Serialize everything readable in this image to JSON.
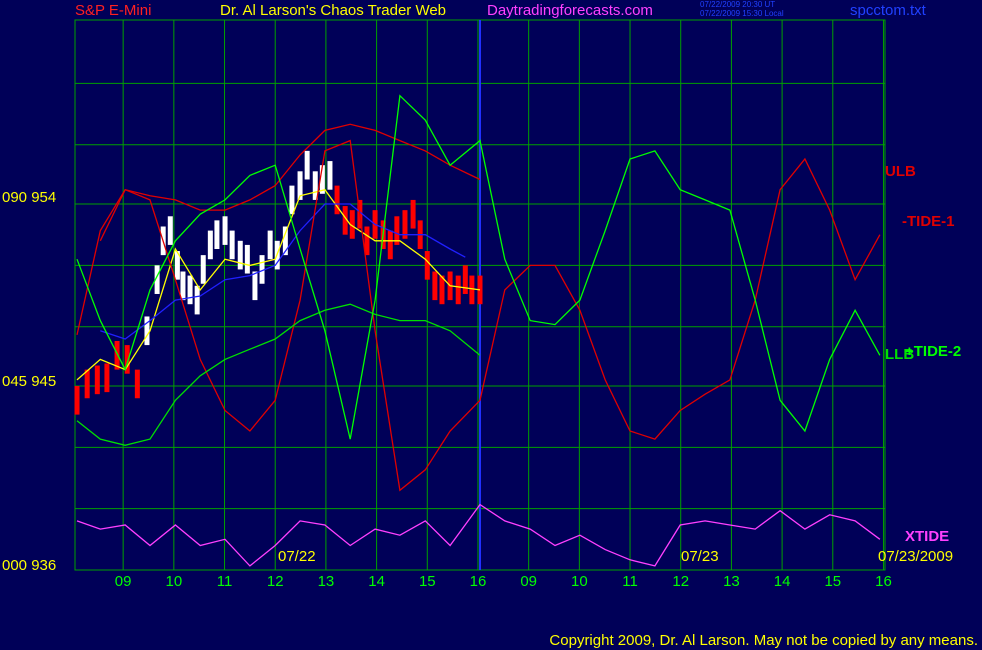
{
  "chart_data": {
    "type": "line",
    "symbol": "S&P E-Mini",
    "title": "Dr. Al Larson's Chaos Trader Web",
    "site": "Daytradingforecasts.com",
    "timestamps": [
      "07/22/2009 20:30 UT",
      "07/22/2009 15:30 Local"
    ],
    "file": "spcctom.txt",
    "date_labels": [
      "07/22",
      "07/23",
      "07/23/2009"
    ],
    "copyright": "Copyright 2009, Dr. Al Larson. May not be copied by any means.",
    "xlim": [
      8.05,
      24.03
    ],
    "ylim": [
      935.8,
      962.7
    ],
    "xticks": [
      {
        "value": 9,
        "label": "09"
      },
      10,
      11,
      12,
      13,
      14,
      15,
      16,
      {
        "value": 17,
        "label": "09"
      },
      {
        "value": 18,
        "label": "10"
      },
      {
        "value": 19,
        "label": "11"
      },
      {
        "value": 20,
        "label": "12"
      },
      {
        "value": 21,
        "label": "13"
      },
      {
        "value": 22,
        "label": "14"
      },
      {
        "value": 23,
        "label": "15"
      },
      {
        "value": 24,
        "label": "16"
      }
    ],
    "yticks": [
      {
        "value": 936,
        "label": "000 936"
      },
      {
        "value": 945,
        "label": "045 945"
      },
      {
        "value": 954,
        "label": "090 954"
      }
    ],
    "ygrid": [
      938.8,
      941.8,
      944.8,
      947.7,
      950.7,
      953.7,
      956.6,
      959.6
    ],
    "grid": true,
    "bars": [
      {
        "color": "#ff0000",
        "x": [
          8.09,
          8.29,
          8.49,
          8.68,
          8.88,
          9.08,
          9.28
        ],
        "high": [
          944.8,
          945.6,
          945.8,
          945.9,
          947.0,
          946.8,
          945.6
        ],
        "low": [
          943.4,
          944.2,
          944.4,
          944.5,
          945.6,
          945.4,
          944.2
        ]
      },
      {
        "color": "#ffffff",
        "x": [
          9.47,
          9.67,
          9.79,
          9.93,
          10.07,
          10.18,
          10.32,
          10.46,
          10.58,
          10.72,
          10.85,
          11.01,
          11.15,
          11.31,
          11.45,
          11.6,
          11.74,
          11.9,
          12.04,
          12.2,
          12.33,
          12.49,
          12.63,
          12.79,
          12.93,
          13.08
        ],
        "high": [
          948.2,
          950.7,
          952.6,
          953.1,
          951.4,
          950.4,
          950.2,
          949.7,
          951.2,
          952.4,
          952.9,
          953.1,
          952.4,
          951.9,
          951.7,
          950.4,
          951.2,
          952.4,
          951.9,
          952.6,
          954.6,
          955.3,
          956.3,
          955.3,
          955.6,
          955.8
        ],
        "low": [
          946.8,
          949.3,
          951.2,
          951.7,
          950.0,
          949.0,
          948.8,
          948.3,
          949.8,
          951.0,
          951.5,
          951.7,
          951.0,
          950.5,
          950.3,
          949.0,
          949.8,
          951.0,
          950.5,
          951.2,
          953.2,
          953.9,
          954.9,
          953.9,
          954.2,
          954.4
        ]
      },
      {
        "color": "#ff0000",
        "x": [
          13.22,
          13.38,
          13.52,
          13.67,
          13.81,
          13.97,
          14.13,
          14.27,
          14.4,
          14.56,
          14.72,
          14.86,
          15.0,
          15.15,
          15.29,
          15.45,
          15.61,
          15.75,
          15.88,
          16.04
        ],
        "high": [
          954.6,
          953.6,
          953.4,
          953.9,
          952.6,
          953.4,
          952.9,
          952.4,
          953.1,
          953.4,
          953.9,
          952.9,
          951.4,
          950.4,
          950.2,
          950.4,
          950.2,
          950.7,
          950.2,
          950.2
        ],
        "low": [
          953.2,
          952.2,
          952.0,
          952.5,
          951.2,
          952.0,
          951.5,
          951.0,
          951.7,
          952.0,
          952.5,
          951.5,
          950.0,
          949.0,
          948.8,
          949.0,
          948.8,
          949.3,
          948.8,
          948.8
        ]
      }
    ],
    "series": [
      {
        "color": "#ffff00",
        "x": [
          8.09,
          8.55,
          9.04,
          9.53,
          10.03,
          10.52,
          11.01,
          11.5,
          12.0,
          12.49,
          12.98,
          13.48,
          13.97,
          14.46,
          14.96,
          15.45,
          16.04
        ],
        "values": [
          945.1,
          946.1,
          945.6,
          947.5,
          951.5,
          949.5,
          951.0,
          950.7,
          951.0,
          954.1,
          954.4,
          952.7,
          951.9,
          951.9,
          951.0,
          949.7,
          949.5
        ]
      },
      {
        "color": "#2020ff",
        "x": [
          8.55,
          9.04,
          9.53,
          10.03,
          10.52,
          11.01,
          11.5,
          12.0,
          12.49,
          12.98,
          13.48,
          13.97,
          14.46,
          14.96,
          15.45,
          15.75
        ],
        "values": [
          947.5,
          947.1,
          948.0,
          949.0,
          949.2,
          950.0,
          950.2,
          950.7,
          952.4,
          953.7,
          953.7,
          952.7,
          952.2,
          952.2,
          951.5,
          951.1
        ]
      },
      {
        "name": "ULB",
        "color": "#e00000",
        "x": [
          8.55,
          9.04,
          9.53,
          10.03,
          10.52,
          11.01,
          11.5,
          12.0,
          12.49,
          12.98,
          13.48,
          13.97,
          14.46,
          14.96,
          15.45,
          16.04
        ],
        "values": [
          951.9,
          954.4,
          954.1,
          953.9,
          953.4,
          953.4,
          953.9,
          954.6,
          956.1,
          957.3,
          957.6,
          957.3,
          956.8,
          956.3,
          955.6,
          954.9
        ]
      },
      {
        "name": "-TIDE-1",
        "color": "#e00000",
        "x": [
          8.09,
          8.55,
          9.04,
          9.53,
          10.03,
          10.52,
          11.01,
          11.5,
          12.0,
          12.49,
          12.98,
          13.48,
          13.97,
          14.46,
          14.96,
          15.45,
          16.04,
          16.53,
          17.03,
          17.52,
          18.01,
          18.51,
          19.0,
          19.49,
          19.99,
          20.48,
          20.97,
          21.47,
          21.96,
          22.45,
          22.94,
          23.44,
          23.93
        ],
        "values": [
          947.3,
          952.4,
          954.4,
          953.9,
          950.0,
          946.1,
          943.6,
          942.6,
          944.1,
          949.0,
          956.3,
          956.8,
          947.5,
          939.7,
          940.7,
          942.6,
          944.1,
          949.5,
          950.7,
          950.7,
          948.5,
          945.1,
          942.6,
          942.2,
          943.6,
          944.4,
          945.1,
          949.0,
          954.4,
          955.9,
          953.4,
          950.0,
          952.2
        ]
      },
      {
        "name": "LLB",
        "color": "#00e000",
        "x": [
          8.09,
          8.55,
          9.04,
          9.53,
          10.03,
          10.52,
          11.01,
          11.5,
          12.0,
          12.49,
          12.98,
          13.48,
          13.97,
          14.46,
          14.96,
          15.45,
          16.04
        ],
        "values": [
          943.1,
          942.2,
          941.9,
          942.2,
          944.1,
          945.3,
          946.1,
          946.6,
          947.1,
          948.0,
          948.5,
          948.8,
          948.3,
          948.0,
          948.0,
          947.5,
          946.3
        ]
      },
      {
        "name": "+TIDE-2",
        "color": "#00ff00",
        "x": [
          8.09,
          8.55,
          9.04,
          9.53,
          10.03,
          10.52,
          11.01,
          11.5,
          12.0,
          12.49,
          12.98,
          13.48,
          13.97,
          14.46,
          14.96,
          15.45,
          16.04,
          16.53,
          17.03,
          17.52,
          18.01,
          18.51,
          19.0,
          19.49,
          19.99,
          20.48,
          20.97,
          21.47,
          21.96,
          22.45,
          22.94,
          23.44,
          23.93
        ],
        "values": [
          951.0,
          948.0,
          945.6,
          949.5,
          951.9,
          953.2,
          953.9,
          955.1,
          955.6,
          951.5,
          947.5,
          942.2,
          949.0,
          959.0,
          957.8,
          955.6,
          956.8,
          951.0,
          948.0,
          947.8,
          949.0,
          952.4,
          955.9,
          956.3,
          954.4,
          953.9,
          953.4,
          949.0,
          944.1,
          942.6,
          946.1,
          948.5,
          946.3
        ]
      },
      {
        "name": "XTIDE",
        "color": "#ff40ff",
        "x": [
          8.09,
          8.55,
          9.04,
          9.53,
          10.03,
          10.52,
          11.01,
          11.5,
          12.0,
          12.49,
          12.98,
          13.48,
          13.97,
          14.46,
          14.96,
          15.45,
          16.04,
          16.53,
          17.03,
          17.52,
          18.01,
          18.51,
          19.0,
          19.49,
          19.99,
          20.48,
          20.97,
          21.47,
          21.96,
          22.45,
          22.94,
          23.44,
          23.93
        ],
        "values": [
          938.2,
          937.8,
          938.0,
          937.0,
          938.0,
          937.0,
          937.3,
          936.0,
          937.0,
          938.2,
          938.0,
          937.0,
          937.8,
          937.5,
          938.2,
          937.0,
          939.0,
          938.2,
          937.8,
          937.0,
          937.5,
          936.8,
          936.3,
          936.0,
          938.0,
          938.2,
          938.0,
          937.8,
          938.7,
          937.8,
          938.5,
          938.2,
          937.3
        ]
      }
    ]
  }
}
